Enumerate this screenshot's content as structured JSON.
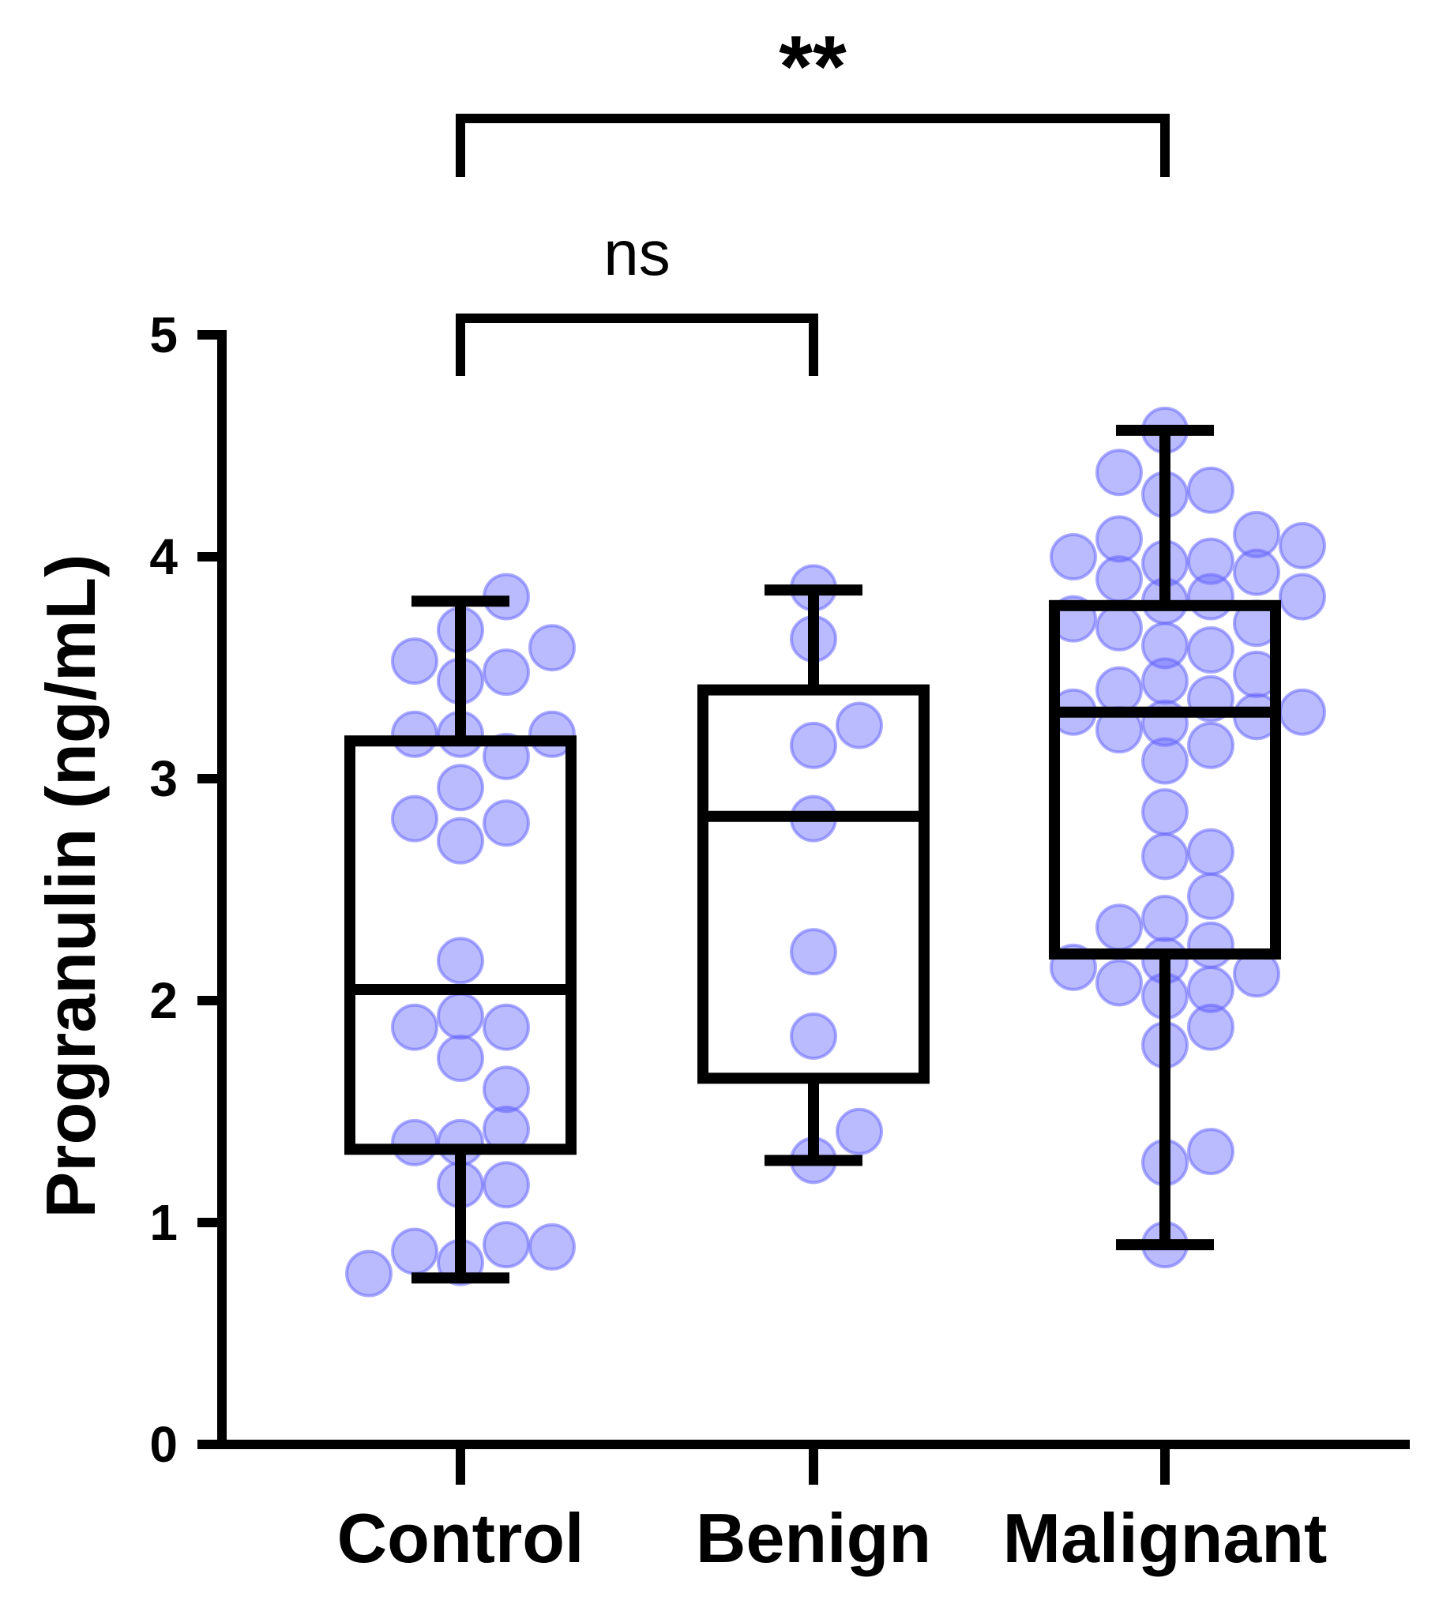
{
  "chart_data": {
    "type": "box",
    "ylabel": "Progranulin (ng/mL)",
    "ylim": [
      0,
      5
    ],
    "yticks": [
      0,
      1,
      2,
      3,
      4,
      5
    ],
    "categories": [
      "Control",
      "Benign",
      "Malignant"
    ],
    "point_color": "#6666ff",
    "box_color": "#000000",
    "boxes": [
      {
        "category": "Control",
        "min": 0.75,
        "q1": 1.33,
        "median": 2.05,
        "q3": 3.17,
        "max": 3.8,
        "points": [
          0.82,
          0.9,
          0.87,
          0.89,
          0.77,
          1.17,
          1.17,
          1.36,
          1.42,
          1.36,
          1.74,
          1.6,
          1.88,
          1.88,
          1.93,
          2.18,
          2.72,
          2.8,
          2.82,
          2.96,
          3.1,
          3.2,
          3.2,
          3.2,
          3.44,
          3.48,
          3.53,
          3.59,
          3.67,
          3.82
        ]
      },
      {
        "category": "Benign",
        "min": 1.28,
        "q1": 1.65,
        "median": 2.83,
        "q3": 3.4,
        "max": 3.85,
        "points": [
          1.28,
          1.41,
          1.84,
          2.22,
          2.82,
          3.15,
          3.24,
          3.63,
          3.86
        ]
      },
      {
        "category": "Malignant",
        "min": 0.9,
        "q1": 2.21,
        "median": 3.3,
        "q3": 3.78,
        "max": 4.57,
        "points": [
          0.9,
          1.27,
          1.32,
          1.8,
          1.88,
          2.02,
          2.05,
          2.08,
          2.12,
          2.15,
          2.18,
          2.25,
          2.33,
          2.37,
          2.47,
          2.65,
          2.67,
          2.85,
          3.08,
          3.15,
          3.22,
          3.25,
          3.28,
          3.3,
          3.3,
          3.36,
          3.4,
          3.44,
          3.47,
          3.58,
          3.6,
          3.68,
          3.7,
          3.72,
          3.8,
          3.82,
          3.82,
          3.9,
          3.93,
          3.97,
          3.98,
          4.0,
          4.05,
          4.08,
          4.1,
          4.28,
          4.3,
          4.38,
          4.57
        ]
      }
    ],
    "comparisons": [
      {
        "from": "Control",
        "to": "Benign",
        "label": "ns"
      },
      {
        "from": "Control",
        "to": "Malignant",
        "label": "**"
      }
    ]
  }
}
